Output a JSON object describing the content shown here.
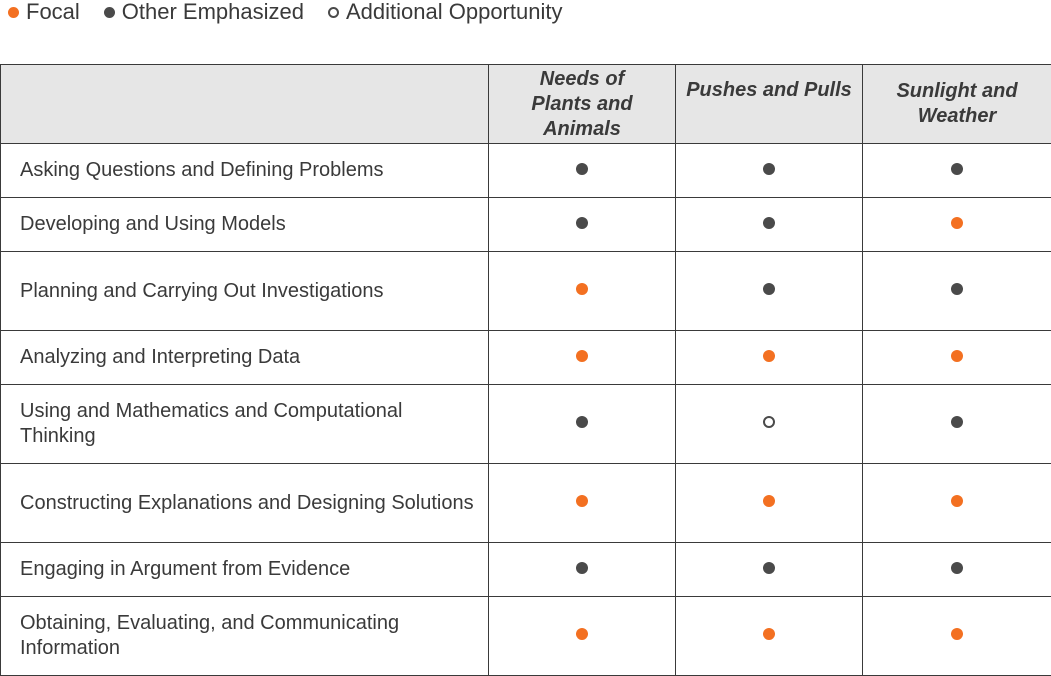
{
  "legend": [
    {
      "type": "focal",
      "label": "Focal",
      "color": "#f37021"
    },
    {
      "type": "emph",
      "label": "Other Emphasized",
      "color": "#4a4a4a"
    },
    {
      "type": "additional",
      "label": "Additional Opportunity",
      "color": "#4a4a4a"
    }
  ],
  "table": {
    "columns": [
      "Needs of Plants and Animals",
      "Pushes and Pulls",
      "Sunlight and Weather"
    ],
    "rows": [
      {
        "practice": "Asking Questions and Defining Problems",
        "marks": [
          "emph",
          "emph",
          "emph"
        ]
      },
      {
        "practice": "Developing and Using Models",
        "marks": [
          "emph",
          "emph",
          "focal"
        ]
      },
      {
        "practice": "Planning and Carrying Out Investigations",
        "marks": [
          "focal",
          "emph",
          "emph"
        ]
      },
      {
        "practice": "Analyzing and Interpreting Data",
        "marks": [
          "focal",
          "focal",
          "focal"
        ]
      },
      {
        "practice": "Using and Mathematics and Computational Thinking",
        "marks": [
          "emph",
          "additional",
          "emph"
        ]
      },
      {
        "practice": "Constructing Explanations and Designing Solutions",
        "marks": [
          "focal",
          "focal",
          "focal"
        ]
      },
      {
        "practice": "Engaging in Argument from Evidence",
        "marks": [
          "emph",
          "emph",
          "emph"
        ]
      },
      {
        "practice": "Obtaining, Evaluating, and Communicating Information",
        "marks": [
          "focal",
          "focal",
          "focal"
        ]
      }
    ]
  }
}
